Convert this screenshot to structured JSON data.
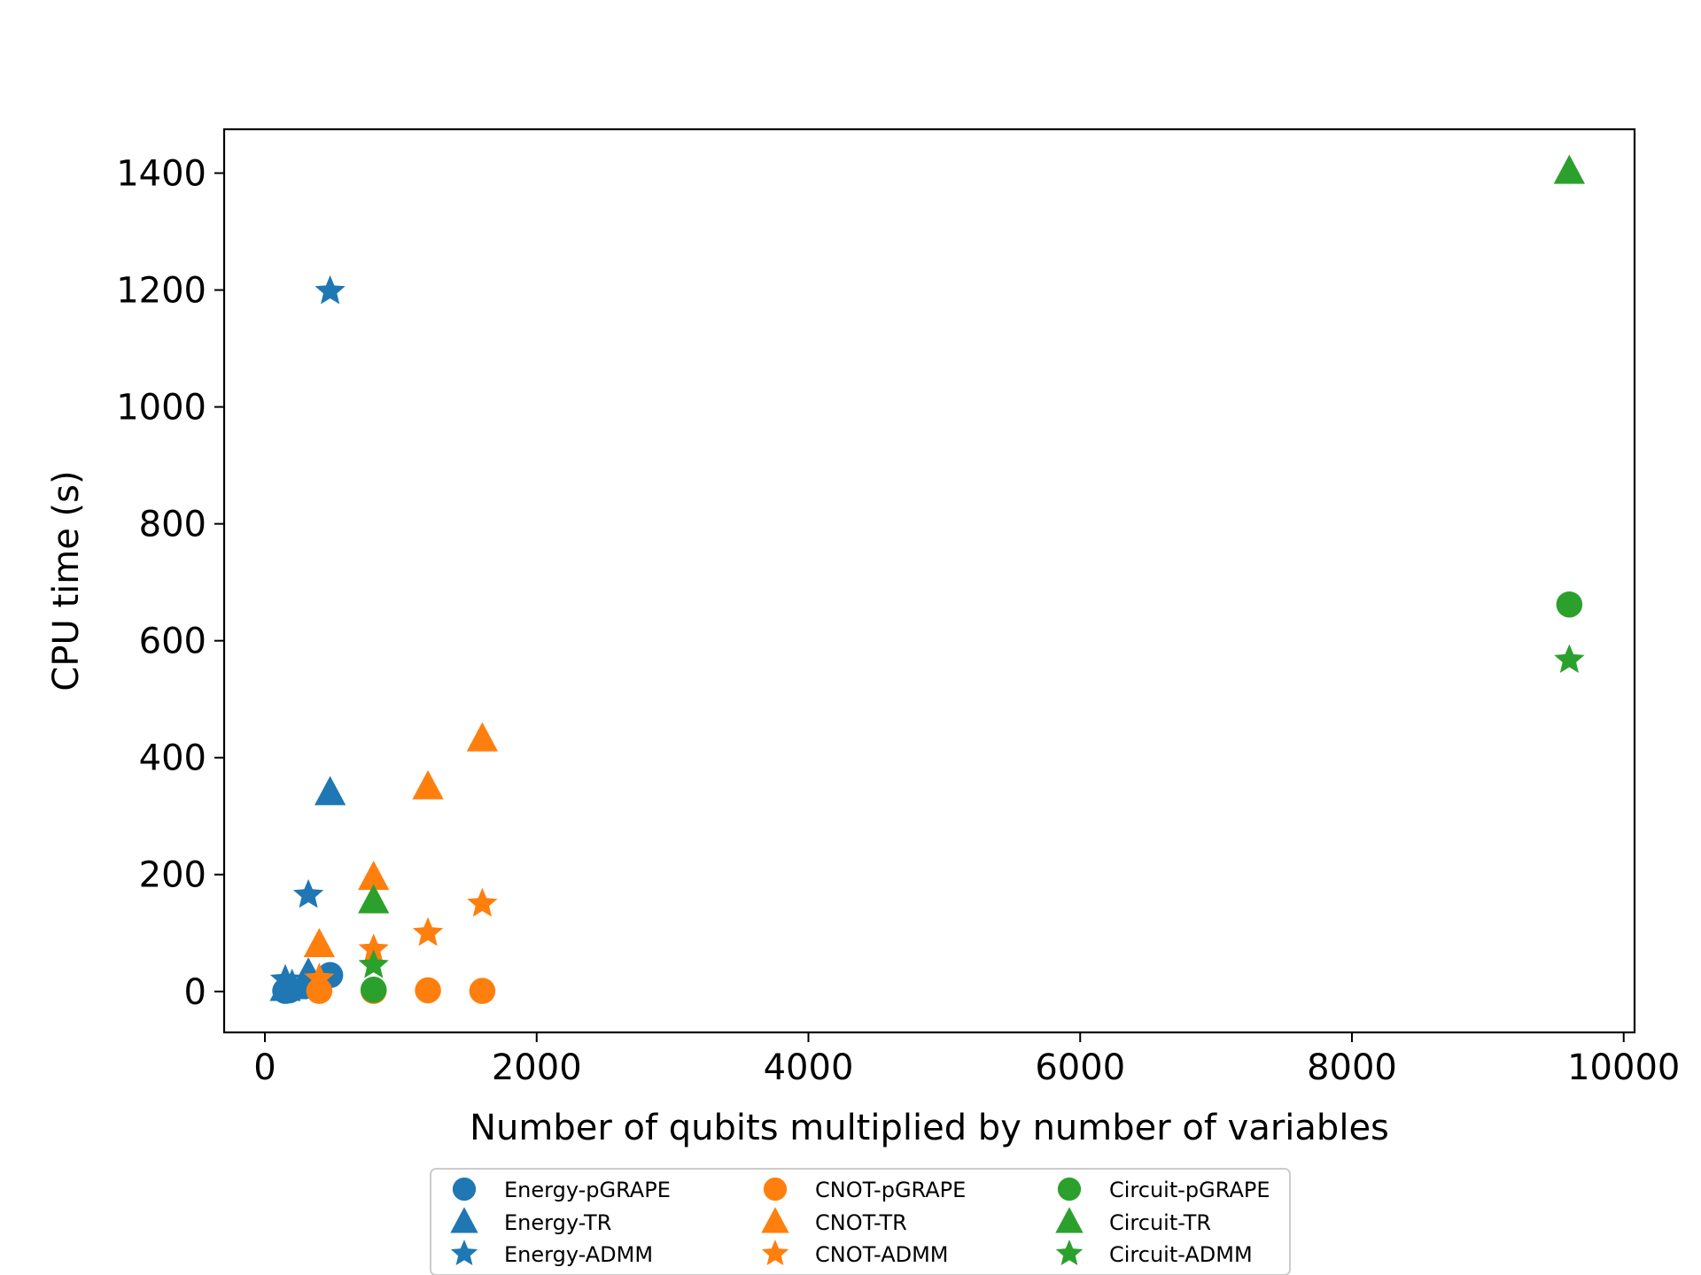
{
  "chart_data": {
    "type": "scatter",
    "title": "",
    "xlabel": "Number of qubits multiplied by number of variables",
    "ylabel": "CPU time (s)",
    "xlim": [
      -300,
      10080
    ],
    "ylim": [
      -70,
      1475
    ],
    "xticks": [
      0,
      2000,
      4000,
      6000,
      8000,
      10000
    ],
    "xtick_labels": [
      "0",
      "2000",
      "4000",
      "6000",
      "8000",
      "10000"
    ],
    "yticks": [
      0,
      200,
      400,
      600,
      800,
      1000,
      1200,
      1400
    ],
    "ytick_labels": [
      "0",
      "200",
      "400",
      "600",
      "800",
      "1000",
      "1200",
      "1400"
    ],
    "grid": false,
    "legend_placement": "below-center",
    "legend_columns": 3,
    "series": [
      {
        "name": "Energy-pGRAPE",
        "marker": "circle",
        "color": "#1f77b4",
        "points": [
          [
            150,
            1
          ],
          [
            180,
            2
          ],
          [
            320,
            10
          ],
          [
            480,
            28
          ]
        ]
      },
      {
        "name": "Energy-TR",
        "marker": "triangle",
        "color": "#1f77b4",
        "points": [
          [
            150,
            5
          ],
          [
            200,
            8
          ],
          [
            320,
            30
          ],
          [
            480,
            340
          ]
        ]
      },
      {
        "name": "Energy-ADMM",
        "marker": "star",
        "color": "#1f77b4",
        "points": [
          [
            150,
            20
          ],
          [
            200,
            12
          ],
          [
            320,
            165
          ],
          [
            480,
            1198
          ]
        ]
      },
      {
        "name": "CNOT-pGRAPE",
        "marker": "circle",
        "color": "#ff7f0e",
        "points": [
          [
            400,
            1
          ],
          [
            800,
            1
          ],
          [
            1200,
            2
          ],
          [
            1600,
            1
          ]
        ]
      },
      {
        "name": "CNOT-TR",
        "marker": "triangle",
        "color": "#ff7f0e",
        "points": [
          [
            400,
            80
          ],
          [
            800,
            195
          ],
          [
            1200,
            350
          ],
          [
            1600,
            432
          ]
        ]
      },
      {
        "name": "CNOT-ADMM",
        "marker": "star",
        "color": "#ff7f0e",
        "points": [
          [
            400,
            22
          ],
          [
            800,
            72
          ],
          [
            1200,
            100
          ],
          [
            1600,
            150
          ]
        ]
      },
      {
        "name": "Circuit-pGRAPE",
        "marker": "circle",
        "color": "#2ca02c",
        "points": [
          [
            800,
            3
          ],
          [
            9600,
            662
          ]
        ]
      },
      {
        "name": "Circuit-TR",
        "marker": "triangle",
        "color": "#2ca02c",
        "points": [
          [
            800,
            155
          ],
          [
            9600,
            1403
          ]
        ]
      },
      {
        "name": "Circuit-ADMM",
        "marker": "star",
        "color": "#2ca02c",
        "points": [
          [
            800,
            45
          ],
          [
            9600,
            567
          ]
        ]
      }
    ]
  }
}
